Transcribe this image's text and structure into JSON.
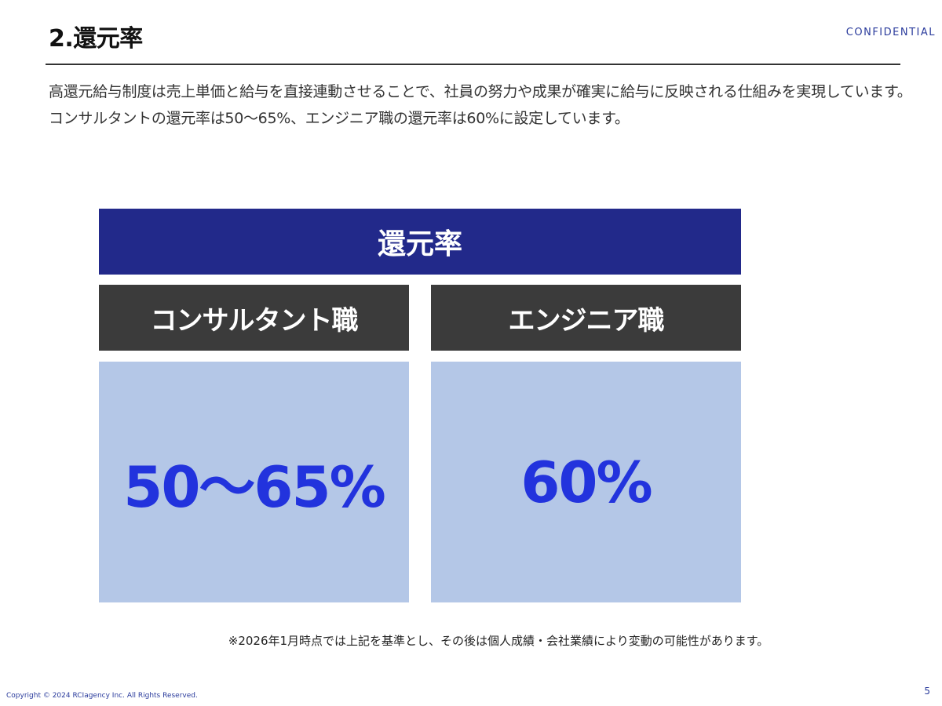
{
  "header": {
    "title": "2.還元率",
    "confidential_label": "CONFIDENTIAL"
  },
  "intro": {
    "text": "高還元給与制度は売上単価と給与を直接連動させることで、社員の努力や成果が確実に給与に反映される仕組みを実現しています。コンサルタントの還元率は50〜65%、エンジニア職の還元率は60%に設定しています。"
  },
  "table": {
    "header": "還元率",
    "columns": [
      {
        "label": "コンサルタント職",
        "value": "50〜65%"
      },
      {
        "label": "エンジニア職",
        "value": "60%"
      }
    ]
  },
  "footnote": "※2026年1月時点では上記を基準とし、その後は個人成績・会社業績により変動の可能性があります。",
  "footer": {
    "copyright": "Copyright © 2024 RCIagency Inc. All Rights Reserved.",
    "page_number": "5"
  },
  "colors": {
    "header_bg": "#22298a",
    "label_bg": "#3b3b3b",
    "value_bg": "#b4c7e7",
    "value_text": "#2233dd",
    "accent": "#2a3b9c"
  }
}
